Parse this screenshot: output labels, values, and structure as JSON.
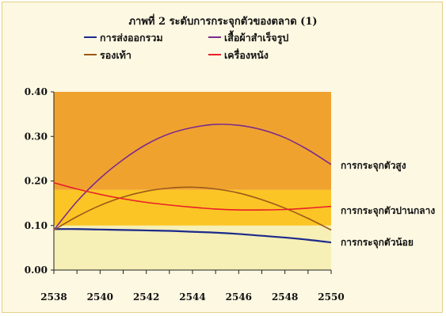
{
  "chart_data": {
    "type": "line",
    "title": "ภาพที่ 2  ระดับการกระจุกตัวของตลาด (1)",
    "xlabel": "",
    "ylabel": "",
    "x": [
      2538,
      2539,
      2540,
      2541,
      2542,
      2543,
      2544,
      2545,
      2546,
      2547,
      2548,
      2549,
      2550
    ],
    "x_ticks": [
      "2538",
      "2540",
      "2542",
      "2544",
      "2546",
      "2548",
      "2550"
    ],
    "y_ticks": [
      "0.00",
      "0.10",
      "0.20",
      "0.30",
      "0.40"
    ],
    "ylim": [
      0,
      0.4
    ],
    "xlim": [
      2538,
      2550
    ],
    "bands": [
      {
        "label": "การกระจุกตัวน้อย",
        "from": 0,
        "to": 0.1,
        "color": "#f6efb6"
      },
      {
        "label": "การกระจุกตัวปานกลาง",
        "from": 0.1,
        "to": 0.18,
        "color": "#fbc525"
      },
      {
        "label": "การกระจุกตัวสูง",
        "from": 0.18,
        "to": 0.4,
        "color": "#f0a22f"
      }
    ],
    "series": [
      {
        "name": "การส่งออกรวม",
        "color": "#1c2a8c",
        "values": [
          0.092,
          0.092,
          0.091,
          0.09,
          0.089,
          0.088,
          0.086,
          0.084,
          0.081,
          0.077,
          0.073,
          0.068,
          0.062
        ]
      },
      {
        "name": "เสื้อผ้าสำเร็จรูป",
        "color": "#7b2d8b",
        "values": [
          0.09,
          0.154,
          0.206,
          0.248,
          0.282,
          0.306,
          0.32,
          0.327,
          0.325,
          0.315,
          0.297,
          0.27,
          0.237
        ]
      },
      {
        "name": "รองเท้า",
        "color": "#9b5a1a",
        "values": [
          0.09,
          0.12,
          0.145,
          0.164,
          0.177,
          0.184,
          0.186,
          0.182,
          0.173,
          0.158,
          0.139,
          0.116,
          0.09
        ]
      },
      {
        "name": "เครื่องหนัง",
        "color": "#e8202a",
        "values": [
          0.196,
          0.182,
          0.17,
          0.16,
          0.152,
          0.146,
          0.141,
          0.137,
          0.135,
          0.135,
          0.136,
          0.139,
          0.143
        ]
      }
    ],
    "legend": {
      "position": "top",
      "columns": 2
    },
    "grid": false
  }
}
